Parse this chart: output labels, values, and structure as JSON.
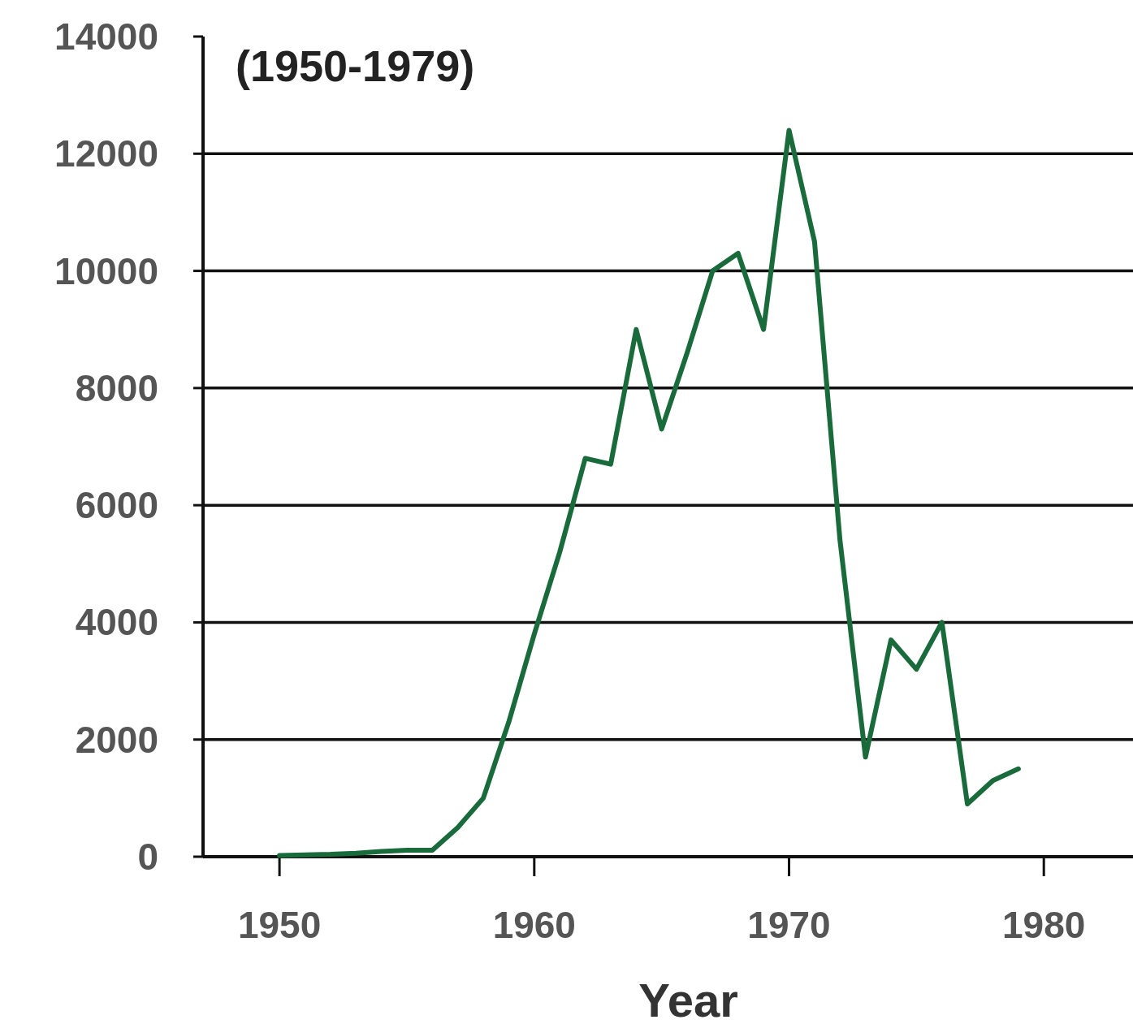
{
  "chart_data": {
    "type": "line",
    "title": "(1950-1979)",
    "xlabel": "Year",
    "x": [
      1950,
      1951,
      1952,
      1953,
      1954,
      1955,
      1956,
      1957,
      1958,
      1959,
      1960,
      1961,
      1962,
      1963,
      1964,
      1965,
      1966,
      1967,
      1968,
      1969,
      1970,
      1971,
      1972,
      1973,
      1974,
      1975,
      1976,
      1977,
      1978,
      1979
    ],
    "series": [
      {
        "color": "#1a6b3c",
        "values": [
          20,
          30,
          40,
          60,
          90,
          110,
          110,
          500,
          1000,
          2300,
          3800,
          5200,
          6800,
          6700,
          9000,
          7300,
          8600,
          10000,
          10300,
          9000,
          12400,
          10500,
          5400,
          1700,
          3700,
          3200,
          4000,
          900,
          1300,
          1500
        ]
      }
    ],
    "xlim": [
      1947,
      1983.5
    ],
    "xticks": [
      1950,
      1960,
      1970,
      1980
    ],
    "ylim": [
      0,
      14000
    ],
    "yticks": [
      0,
      2000,
      4000,
      6000,
      8000,
      10000,
      12000,
      14000
    ],
    "grid": "y",
    "marker": "none",
    "line_style": "solid"
  }
}
